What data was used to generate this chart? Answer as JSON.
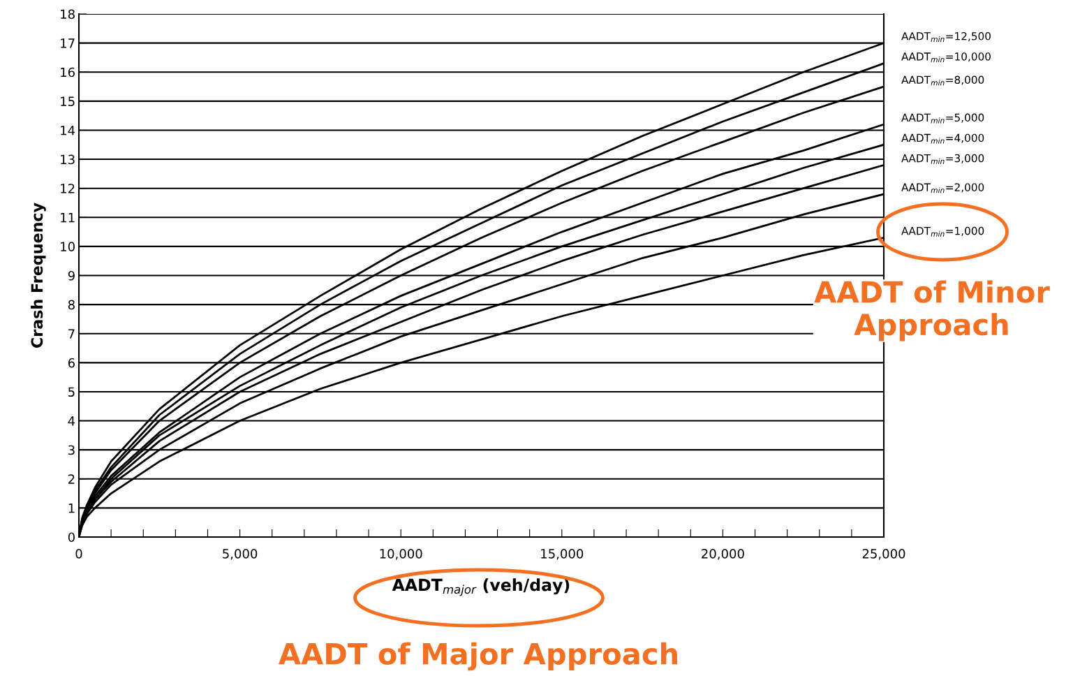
{
  "chart_data": {
    "type": "line",
    "xlabel": "AADT$_{major}$ (veh/day)",
    "ylabel": "Crash Frequency",
    "x": [
      0,
      100,
      250,
      500,
      1000,
      2500,
      5000,
      7500,
      10000,
      12500,
      15000,
      17500,
      20000,
      22500,
      25000
    ],
    "series": [
      {
        "name": "AADT$_{min}$=12,500",
        "color": "#000000",
        "values": [
          0,
          0.65,
          1.1,
          1.7,
          2.6,
          4.4,
          6.6,
          8.3,
          9.9,
          11.3,
          12.6,
          13.8,
          14.9,
          16.0,
          17.0
        ]
      },
      {
        "name": "AADT$_{min}$=10,000",
        "color": "#000000",
        "values": [
          0,
          0.6,
          1.1,
          1.6,
          2.4,
          4.2,
          6.3,
          8.0,
          9.5,
          10.8,
          12.1,
          13.2,
          14.3,
          15.3,
          16.3
        ]
      },
      {
        "name": "AADT$_{min}$=8,000",
        "color": "#000000",
        "values": [
          0,
          0.6,
          1.0,
          1.5,
          2.3,
          4.0,
          6.0,
          7.6,
          9.0,
          10.3,
          11.5,
          12.6,
          13.6,
          14.6,
          15.5
        ]
      },
      {
        "name": "AADT$_{min}$=5,000",
        "color": "#000000",
        "values": [
          0,
          0.5,
          0.9,
          1.4,
          2.1,
          3.6,
          5.5,
          7.0,
          8.3,
          9.4,
          10.5,
          11.5,
          12.5,
          13.3,
          14.2
        ]
      },
      {
        "name": "AADT$_{min}$=4,000",
        "color": "#000000",
        "values": [
          0,
          0.5,
          0.9,
          1.3,
          2.0,
          3.5,
          5.2,
          6.6,
          7.9,
          9.0,
          10.0,
          10.9,
          11.8,
          12.7,
          13.5
        ]
      },
      {
        "name": "AADT$_{min}$=3,000",
        "color": "#000000",
        "values": [
          0,
          0.5,
          0.8,
          1.3,
          1.9,
          3.3,
          5.0,
          6.3,
          7.4,
          8.5,
          9.5,
          10.4,
          11.2,
          12.0,
          12.8
        ]
      },
      {
        "name": "AADT$_{min}$=2,000",
        "color": "#000000",
        "values": [
          0,
          0.4,
          0.8,
          1.2,
          1.8,
          3.0,
          4.6,
          5.8,
          6.9,
          7.8,
          8.7,
          9.6,
          10.3,
          11.1,
          11.8
        ]
      },
      {
        "name": "AADT$_{min}$=1,000",
        "color": "#000000",
        "values": [
          0,
          0.4,
          0.7,
          1.0,
          1.5,
          2.6,
          4.0,
          5.1,
          6.0,
          6.8,
          7.6,
          8.3,
          9.0,
          9.7,
          10.3
        ]
      }
    ],
    "xlim": [
      0,
      25000
    ],
    "ylim": [
      0,
      18
    ],
    "xticks": [
      0,
      {
        "value": 1000,
        "label": null
      },
      {
        "value": 2000,
        "label": null
      },
      {
        "value": 3000,
        "label": null
      },
      {
        "value": 4000,
        "label": null
      },
      {
        "value": 5000,
        "label": "5,000"
      },
      {
        "value": 6000,
        "label": null
      },
      {
        "value": 7000,
        "label": null
      },
      {
        "value": 8000,
        "label": null
      },
      {
        "value": 9000,
        "label": null
      },
      {
        "value": 10000,
        "label": "10,000"
      },
      {
        "value": 11000,
        "label": null
      },
      {
        "value": 12000,
        "label": null
      },
      {
        "value": 13000,
        "label": null
      },
      {
        "value": 14000,
        "label": null
      },
      {
        "value": 15000,
        "label": "15,000"
      },
      {
        "value": 16000,
        "label": null
      },
      {
        "value": 17000,
        "label": null
      },
      {
        "value": 18000,
        "label": null
      },
      {
        "value": 19000,
        "label": null
      },
      {
        "value": 20000,
        "label": "20,000"
      },
      {
        "value": 21000,
        "label": null
      },
      {
        "value": 22000,
        "label": null
      },
      {
        "value": 23000,
        "label": null
      },
      {
        "value": 24000,
        "label": null
      },
      {
        "value": 25000,
        "label": "25,000"
      }
    ],
    "yticks": [
      0,
      1,
      2,
      3,
      4,
      5,
      6,
      7,
      8,
      9,
      10,
      11,
      12,
      13,
      14,
      15,
      16,
      17,
      18
    ],
    "grid": "y",
    "marker": "none",
    "line_style": "solid",
    "legend": false,
    "annotations": [
      "AADT of Minor Approach",
      "AADT of Major Approach"
    ]
  }
}
